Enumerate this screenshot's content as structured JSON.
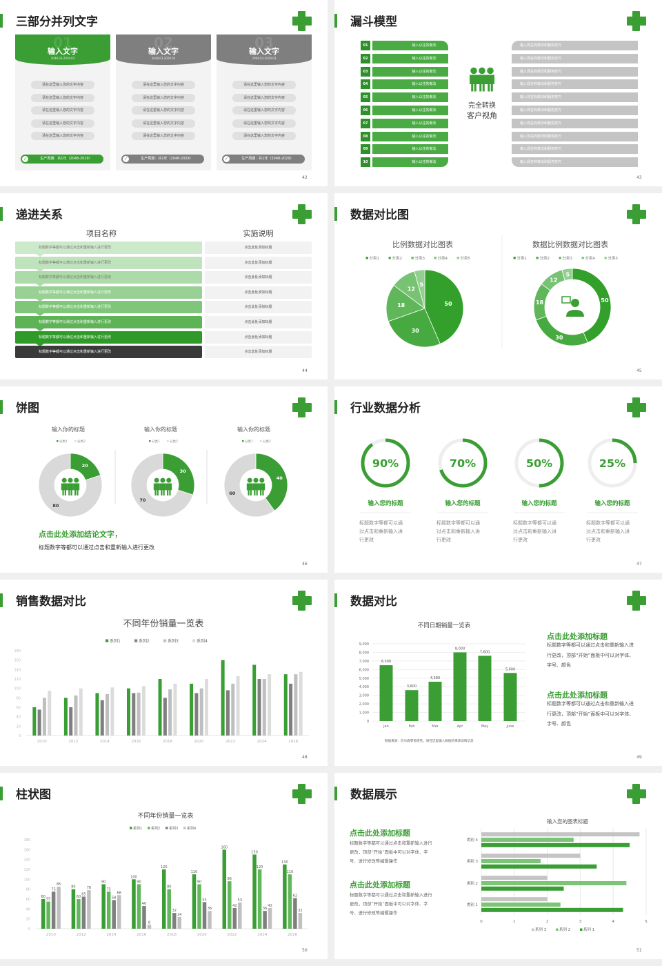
{
  "colors": {
    "green": "#3a9e34",
    "gray": "#7f7f7f",
    "light_gray": "#d9d9d9"
  },
  "slides": [
    {
      "title": "三部分并列文字",
      "page": "42",
      "cards": [
        {
          "number": "01",
          "title": "输入文字",
          "date": "2048.03-2029.03",
          "items": [
            "请在这里输入您的文字内容",
            "请在这里输入您的文字内容",
            "请在这里输入您的文字内容",
            "请在这里输入您的文字内容",
            "请在这里输入您的文字内容"
          ],
          "footer": "生产周期：共1年（2048-2029）",
          "active": true
        },
        {
          "number": "02",
          "title": "输入文字",
          "date": "2048.03-2029.03",
          "items": [
            "请在这里输入您的文字内容",
            "请在这里输入您的文字内容",
            "请在这里输入您的文字内容",
            "请在这里输入您的文字内容",
            "请在这里输入您的文字内容"
          ],
          "footer": "生产周期：共1年（2048-2029）",
          "active": false
        },
        {
          "number": "03",
          "title": "输入文字",
          "date": "2048.03-2029.03",
          "items": [
            "请在这里输入您的文字内容",
            "请在这里输入您的文字内容",
            "请在这里输入您的文字内容",
            "请在这里输入您的文字内容",
            "请在这里输入您的文字内容"
          ],
          "footer": "生产周期：共1年（2048-2029）",
          "active": false
        }
      ]
    },
    {
      "title": "漏斗模型",
      "page": "43",
      "numbers": [
        "01",
        "02",
        "03",
        "04",
        "05",
        "06",
        "07",
        "08",
        "09",
        "10"
      ],
      "left_items": [
        "输入以往的做法",
        "输入以往的做法",
        "输入以往的做法",
        "输入以往的做法",
        "输入以往的做法",
        "输入以往的做法",
        "输入以往的做法",
        "输入以往的做法",
        "输入以往的做法",
        "输入以往的做法"
      ],
      "right_items": [
        "输入现在的做法和服务技巧",
        "输入现在的做法和服务技巧",
        "输入现在的做法和服务技巧",
        "输入现在的做法和服务技巧",
        "输入现在的做法和服务技巧",
        "输入现在的做法和服务技巧",
        "输入现在的做法和服务技巧",
        "输入现在的做法和服务技巧",
        "输入现在的做法和服务技巧",
        "输入现在的做法和服务技巧"
      ],
      "center_lines": [
        "完全转换",
        "客户视角"
      ],
      "center_icon": "people-group-icon"
    },
    {
      "title": "递进关系",
      "page": "44",
      "headers": [
        "项目名称",
        "实施说明"
      ],
      "rows": [
        {
          "left": "标题数字等都可以通过点击和重新输入进行更改",
          "right": "点击此处添加标题"
        },
        {
          "left": "标题数字等都可以通过点击和重新输入进行更改",
          "right": "点击此处添加标题"
        },
        {
          "left": "标题数字等都可以通过点击和重新输入进行更改",
          "right": "点击此处添加标题"
        },
        {
          "left": "标题数字等都可以通过点击和重新输入进行更改",
          "right": "点击此处添加标题"
        },
        {
          "left": "标题数字等都可以通过点击和重新输入进行更改",
          "right": "点击此处添加标题"
        },
        {
          "left": "标题数字等都可以通过点击和重新输入进行更改",
          "right": "点击此处添加标题"
        },
        {
          "left": "标题数字等都可以通过点击和重新输入进行更改",
          "right": "点击此处添加标题"
        },
        {
          "left": "标题数字等都可以通过点击和重新输入进行更改",
          "right": "点击此处添加标题"
        }
      ],
      "row_colors": [
        "#cde9cb",
        "#bfe3bc",
        "#acdaa8",
        "#98d193",
        "#80c67a",
        "#5db356",
        "#2f9a28",
        "#3a3a3a"
      ]
    },
    {
      "title": "数据对比图",
      "page": "45",
      "center_icon": "person-chat-icon"
    },
    {
      "title": "饼图",
      "page": "46",
      "conclusion_heading": "点击此处添加结论文字",
      "conclusion_comma": "，",
      "conclusion_text": "标题数字等都可以通过点击和重新输入进行更改",
      "center_icon": "people-group-icon"
    },
    {
      "title": "行业数据分析",
      "page": "47",
      "items": [
        {
          "label": "90%",
          "percent": 90,
          "heading": "输入您的标题",
          "desc": [
            "标题数字等都可以通",
            "过点击和重新输入进",
            "行更改"
          ]
        },
        {
          "label": "70%",
          "percent": 70,
          "heading": "输入您的标题",
          "desc": [
            "标题数字等都可以通",
            "过点击和重新输入进",
            "行更改"
          ]
        },
        {
          "label": "50%",
          "percent": 50,
          "heading": "输入您的标题",
          "desc": [
            "标题数字等都可以通",
            "过点击和重新输入进",
            "行更改"
          ]
        },
        {
          "label": "25%",
          "percent": 25,
          "heading": "输入您的标题",
          "desc": [
            "标题数字等都可以通",
            "过点击和重新输入进",
            "行更改"
          ]
        }
      ]
    },
    {
      "title": "销售数据对比",
      "page": "48"
    },
    {
      "title": "数据对比",
      "page": "49",
      "blocks": [
        {
          "heading": "点击此处添加标题",
          "lines": [
            "标题数字等都可以通过点击和重新输入进",
            "行更改，顶部“开始”面板中可以对字体、",
            "字号、颜色"
          ]
        },
        {
          "heading": "点击此处添加标题",
          "lines": [
            "标题数字等都可以通过点击和重新输入进",
            "行更改，顶部“开始”面板中可以对字体、",
            "字号、颜色"
          ]
        }
      ],
      "source": "数据来源：尼尔森零售研究，请在这里输入数据的来源详情信息"
    },
    {
      "title": "柱状图",
      "page": "50"
    },
    {
      "title": "数据展示",
      "page": "51",
      "blocks": [
        {
          "heading": "点击此处添加标题",
          "lines": [
            "标题数字等都可以通过点击和重新输入进行",
            "更改，顶部“开始”面板中可以对字体、字",
            "号、进行修改等编辑操作"
          ]
        },
        {
          "heading": "点击此处添加标题",
          "lines": [
            "标题数字等都可以通过点击和重新输入进行",
            "更改，顶部“开始”面板中可以对字体、字",
            "号、进行修改等编辑操作"
          ]
        }
      ]
    }
  ],
  "chart_data": [
    {
      "type": "pie",
      "title": "比例数据对比图表",
      "categories": [
        "分类1",
        "分类2",
        "分类3",
        "分类4",
        "分类5"
      ],
      "values": [
        50,
        30,
        18,
        12,
        5
      ],
      "colors": [
        "#33a02c",
        "#47aa41",
        "#5fb75a",
        "#78c373",
        "#93d08f"
      ],
      "legend": "top"
    },
    {
      "type": "donut",
      "title": "数据比例数据对比图表",
      "categories": [
        "分类1",
        "分类2",
        "分类3",
        "分类4",
        "分类5"
      ],
      "values": [
        50,
        30,
        18,
        12,
        5
      ],
      "colors": [
        "#33a02c",
        "#47aa41",
        "#5fb75a",
        "#78c373",
        "#93d08f"
      ],
      "legend": "top"
    },
    {
      "type": "donut",
      "title": "输入你的标题",
      "categories": [
        "分类1",
        "分类2"
      ],
      "values": [
        20,
        80
      ],
      "colors": [
        "#3a9e34",
        "#d9d9d9"
      ],
      "legend": "top"
    },
    {
      "type": "donut",
      "title": "输入你的标题",
      "categories": [
        "分类1",
        "分类2"
      ],
      "values": [
        30,
        70
      ],
      "colors": [
        "#3a9e34",
        "#d9d9d9"
      ],
      "legend": "top"
    },
    {
      "type": "donut",
      "title": "输入你的标题",
      "categories": [
        "分类1",
        "分类2"
      ],
      "values": [
        40,
        60
      ],
      "colors": [
        "#3a9e34",
        "#d9d9d9"
      ],
      "legend": "top"
    },
    {
      "type": "bar",
      "title": "不同年份销量一览表",
      "categories": [
        "2010",
        "2012",
        "2014",
        "2016",
        "2018",
        "2020",
        "2022",
        "2024",
        "2026"
      ],
      "series": [
        {
          "name": "系列1",
          "values": [
            60,
            80,
            90,
            100,
            120,
            110,
            160,
            150,
            130
          ],
          "color": "#3a9e34"
        },
        {
          "name": "系列2",
          "values": [
            55,
            60,
            75,
            90,
            80,
            90,
            96,
            120,
            110
          ],
          "color": "#7f7f7f"
        },
        {
          "name": "系列3",
          "values": [
            80,
            85,
            88,
            91,
            98,
            100,
            110,
            120,
            130
          ],
          "color": "#bfbfbf"
        },
        {
          "name": "系列4",
          "values": [
            95,
            100,
            102,
            105,
            110,
            120,
            126,
            130,
            135
          ],
          "color": "#dcdcdc"
        }
      ],
      "ylim": [
        0,
        180
      ],
      "yticks": [
        "0",
        "20",
        "40",
        "60",
        "80",
        "100",
        "120",
        "140",
        "160",
        "180"
      ],
      "legend": "top",
      "grid": false
    },
    {
      "type": "bar",
      "title": "不同日期销量一览表",
      "categories": [
        "Jan",
        "Feb",
        "Mar",
        "Apr",
        "May",
        "June"
      ],
      "values": [
        6500,
        3600,
        4580,
        8000,
        7600,
        5600
      ],
      "data_labels": [
        "6,500",
        "3,600",
        "4,580",
        "8,000",
        "7,600",
        "5,600"
      ],
      "ylim": [
        0,
        9000
      ],
      "yticks": [
        "0",
        "1,000",
        "2,000",
        "3,000",
        "4,000",
        "5,000",
        "6,000",
        "7,000",
        "8,000",
        "9,000"
      ],
      "grid": true,
      "color": "#3a9e34"
    },
    {
      "type": "bar",
      "title": "不同年份销量一览表",
      "categories": [
        "2010",
        "2012",
        "2014",
        "2016",
        "2018",
        "2020",
        "2022",
        "2024",
        "2026"
      ],
      "series": [
        {
          "name": "系列1",
          "values": [
            60,
            80,
            90,
            100,
            120,
            110,
            160,
            150,
            130
          ],
          "color": "#3a9e34"
        },
        {
          "name": "系列2",
          "values": [
            55,
            60,
            75,
            90,
            80,
            90,
            96,
            120,
            110
          ],
          "color": "#62b65c"
        },
        {
          "name": "系列3",
          "values": [
            75,
            65,
            58,
            46,
            32,
            54,
            42,
            36,
            62
          ],
          "color": "#7f7f7f"
        },
        {
          "name": "系列4",
          "values": [
            85,
            78,
            68,
            8,
            24,
            36,
            53,
            42,
            32
          ],
          "color": "#c0c0c0"
        }
      ],
      "ylim": [
        0,
        180
      ],
      "yticks": [
        "0",
        "20",
        "40",
        "60",
        "80",
        "100",
        "120",
        "140",
        "160",
        "180"
      ],
      "legend": "top",
      "data_labels": true,
      "grid": false
    },
    {
      "type": "bar",
      "orientation": "horizontal",
      "title": "输入您的图表标题",
      "categories": [
        "类别 1",
        "类别 2",
        "类别 3",
        "类别 4"
      ],
      "series": [
        {
          "name": "系列 1",
          "values": [
            4.3,
            2.5,
            3.5,
            4.5
          ],
          "color": "#3a9e34"
        },
        {
          "name": "系列 2",
          "values": [
            2.4,
            4.4,
            1.8,
            2.8
          ],
          "color": "#7cc576"
        },
        {
          "name": "系列 3",
          "values": [
            2,
            2,
            3,
            4.8
          ],
          "color": "#c4c4c4"
        }
      ],
      "xlim": [
        0,
        5
      ],
      "xticks": [
        "0",
        "1",
        "2",
        "3",
        "4",
        "5"
      ],
      "legend": "bottom",
      "grid": true
    }
  ]
}
